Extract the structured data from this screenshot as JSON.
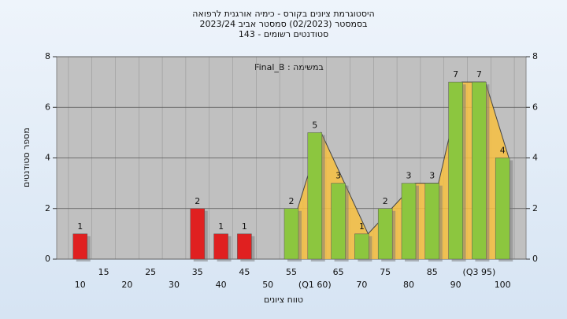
{
  "chart_data": {
    "type": "bar",
    "title": [
      "היסטוגרמת ציונים בקורס - כימיה אורגנית לרפואה",
      "בסמסטר  (02/2023)  סמסטר אביב 2023/24",
      "סטודנטים רשומים - 143"
    ],
    "annotation": "במשימה : Final_B",
    "y_label": "מספר סטודנטים",
    "x_label": "טווח ציונים",
    "categories": [
      "10",
      "15",
      "20",
      "25",
      "30",
      "35",
      "40",
      "45",
      "50",
      "55",
      "(Q1 60)",
      "65",
      "70",
      "75",
      "80",
      "85",
      "90",
      "(Q3 95)",
      "100"
    ],
    "values": [
      1,
      0,
      0,
      0,
      0,
      2,
      1,
      1,
      0,
      2,
      5,
      3,
      1,
      2,
      3,
      3,
      7,
      7,
      4
    ],
    "value_labels": [
      "1",
      null,
      null,
      null,
      null,
      "2",
      "1",
      "1",
      null,
      "2",
      "5",
      "3",
      "1",
      "2",
      "3",
      "3",
      "7",
      "7",
      "4"
    ],
    "bar_colors": [
      "#e02020",
      "#e02020",
      "#e02020",
      "#e02020",
      "#e02020",
      "#e02020",
      "#e02020",
      "#e02020",
      "#e02020",
      "#8cc63f",
      "#8cc63f",
      "#8cc63f",
      "#8cc63f",
      "#8cc63f",
      "#8cc63f",
      "#8cc63f",
      "#8cc63f",
      "#8cc63f",
      "#8cc63f"
    ],
    "area_color": "#f7c040",
    "ylim": [
      0,
      8
    ],
    "yticks": [
      0,
      2,
      4,
      6,
      8
    ],
    "grid": true
  }
}
